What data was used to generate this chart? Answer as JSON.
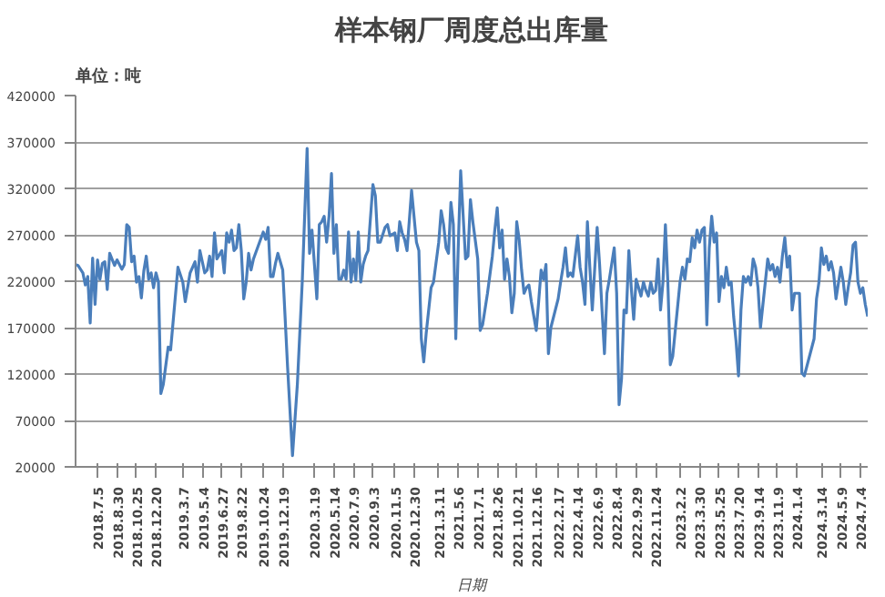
{
  "chart_data": {
    "type": "line",
    "title": "样本钢厂周度总出库量",
    "subtitle": "单位：吨",
    "xlabel": "日期",
    "x": [
      "2018-05-03",
      "2018-05-10",
      "2018-05-24",
      "2018-05-31",
      "2018-06-07",
      "2018-06-14",
      "2018-06-21",
      "2018-06-28",
      "2018-07-05",
      "2018-07-12",
      "2018-07-19",
      "2018-07-26",
      "2018-08-02",
      "2018-08-09",
      "2018-08-23",
      "2018-08-30",
      "2018-09-13",
      "2018-09-20",
      "2018-09-27",
      "2018-10-04",
      "2018-10-11",
      "2018-10-18",
      "2018-10-25",
      "2018-11-01",
      "2018-11-08",
      "2018-11-15",
      "2018-11-22",
      "2018-11-29",
      "2018-12-06",
      "2018-12-13",
      "2018-12-20",
      "2018-12-27",
      "2019-01-03",
      "2019-01-10",
      "2019-01-24",
      "2019-01-31",
      "2019-02-21",
      "2019-03-07",
      "2019-03-14",
      "2019-03-28",
      "2019-04-11",
      "2019-04-18",
      "2019-04-25",
      "2019-05-09",
      "2019-05-16",
      "2019-05-23",
      "2019-05-30",
      "2019-06-06",
      "2019-06-13",
      "2019-06-27",
      "2019-07-04",
      "2019-07-11",
      "2019-07-18",
      "2019-07-25",
      "2019-08-01",
      "2019-08-08",
      "2019-08-15",
      "2019-08-22",
      "2019-08-29",
      "2019-09-05",
      "2019-09-12",
      "2019-09-19",
      "2019-09-26",
      "2019-10-24",
      "2019-10-31",
      "2019-11-07",
      "2019-11-14",
      "2019-11-21",
      "2019-11-28",
      "2019-12-05",
      "2019-12-19",
      "2020-01-02",
      "2020-01-16",
      "2020-01-30",
      "2020-02-13",
      "2020-02-27",
      "2020-03-05",
      "2020-03-12",
      "2020-03-26",
      "2020-04-02",
      "2020-04-09",
      "2020-04-16",
      "2020-04-23",
      "2020-04-30",
      "2020-05-07",
      "2020-05-14",
      "2020-05-21",
      "2020-05-28",
      "2020-06-04",
      "2020-06-11",
      "2020-06-18",
      "2020-06-25",
      "2020-07-02",
      "2020-07-09",
      "2020-07-16",
      "2020-07-23",
      "2020-07-30",
      "2020-08-06",
      "2020-08-13",
      "2020-08-20",
      "2020-09-03",
      "2020-09-10",
      "2020-09-17",
      "2020-09-24",
      "2020-10-08",
      "2020-10-15",
      "2020-10-22",
      "2020-11-05",
      "2020-11-12",
      "2020-11-19",
      "2020-11-26",
      "2020-12-03",
      "2020-12-10",
      "2020-12-23",
      "2021-01-06",
      "2021-01-13",
      "2021-01-20",
      "2021-01-27",
      "2021-02-03",
      "2021-02-17",
      "2021-02-24",
      "2021-03-11",
      "2021-03-18",
      "2021-03-25",
      "2021-04-01",
      "2021-04-08",
      "2021-04-15",
      "2021-04-22",
      "2021-04-29",
      "2021-05-06",
      "2021-05-13",
      "2021-05-27",
      "2021-06-03",
      "2021-06-10",
      "2021-06-17",
      "2021-07-01",
      "2021-07-08",
      "2021-07-15",
      "2021-07-29",
      "2021-08-12",
      "2021-08-19",
      "2021-08-26",
      "2021-09-02",
      "2021-09-09",
      "2021-09-16",
      "2021-09-23",
      "2021-09-30",
      "2021-10-07",
      "2021-10-14",
      "2021-10-21",
      "2021-10-28",
      "2021-11-04",
      "2021-11-11",
      "2021-11-18",
      "2021-11-25",
      "2021-12-02",
      "2021-12-16",
      "2021-12-23",
      "2021-12-30",
      "2022-01-06",
      "2022-01-13",
      "2022-01-20",
      "2022-01-27",
      "2022-02-17",
      "2022-02-24",
      "2022-03-03",
      "2022-03-10",
      "2022-03-17",
      "2022-03-24",
      "2022-03-31",
      "2022-04-14",
      "2022-04-21",
      "2022-04-28",
      "2022-05-05",
      "2022-05-12",
      "2022-05-19",
      "2022-05-26",
      "2022-06-09",
      "2022-06-16",
      "2022-06-23",
      "2022-06-30",
      "2022-07-07",
      "2022-07-14",
      "2022-07-28",
      "2022-08-04",
      "2022-08-11",
      "2022-08-18",
      "2022-08-25",
      "2022-09-01",
      "2022-09-08",
      "2022-09-15",
      "2022-09-22",
      "2022-09-29",
      "2022-10-13",
      "2022-10-20",
      "2022-10-27",
      "2022-11-03",
      "2022-11-10",
      "2022-11-17",
      "2022-11-24",
      "2022-12-01",
      "2022-12-08",
      "2022-12-15",
      "2022-12-22",
      "2022-12-29",
      "2023-01-05",
      "2023-01-12",
      "2023-02-02",
      "2023-02-09",
      "2023-02-16",
      "2023-02-23",
      "2023-03-02",
      "2023-03-09",
      "2023-03-16",
      "2023-03-23",
      "2023-03-30",
      "2023-04-06",
      "2023-04-13",
      "2023-04-20",
      "2023-04-27",
      "2023-05-04",
      "2023-05-11",
      "2023-05-18",
      "2023-05-25",
      "2023-06-01",
      "2023-06-08",
      "2023-06-15",
      "2023-06-22",
      "2023-06-29",
      "2023-07-06",
      "2023-07-13",
      "2023-07-20",
      "2023-07-27",
      "2023-08-03",
      "2023-08-10",
      "2023-08-17",
      "2023-08-24",
      "2023-08-31",
      "2023-09-07",
      "2023-09-14",
      "2023-09-21",
      "2023-10-12",
      "2023-10-19",
      "2023-10-26",
      "2023-11-02",
      "2023-11-09",
      "2023-11-16",
      "2023-11-23",
      "2023-11-30",
      "2023-12-07",
      "2023-12-14",
      "2023-12-21",
      "2023-12-28",
      "2024-01-04",
      "2024-01-11",
      "2024-01-18",
      "2024-01-25",
      "2024-02-22",
      "2024-02-29",
      "2024-03-07",
      "2024-03-14",
      "2024-03-21",
      "2024-03-28",
      "2024-04-04",
      "2024-04-11",
      "2024-04-18",
      "2024-04-25",
      "2024-05-09",
      "2024-05-16",
      "2024-05-23",
      "2024-05-30",
      "2024-06-06",
      "2024-06-13",
      "2024-06-20",
      "2024-06-27",
      "2024-07-04",
      "2024-07-11",
      "2024-07-18",
      "2024-07-25"
    ],
    "series": [
      {
        "color": "#4a7ebb",
        "values": [
          238000,
          237000,
          229000,
          216000,
          225000,
          175000,
          245000,
          195000,
          243000,
          222000,
          239000,
          241000,
          211000,
          250000,
          237000,
          243000,
          233000,
          238000,
          281000,
          278000,
          241000,
          247000,
          219000,
          225000,
          202000,
          231000,
          247000,
          222000,
          229000,
          213000,
          229000,
          219000,
          99000,
          109000,
          149000,
          146000,
          235000,
          219000,
          198000,
          229000,
          241000,
          219000,
          253000,
          229000,
          232000,
          247000,
          225000,
          272000,
          244000,
          253000,
          229000,
          272000,
          262000,
          275000,
          253000,
          256000,
          281000,
          253000,
          201000,
          219000,
          250000,
          232000,
          244000,
          273000,
          265000,
          278000,
          225000,
          225000,
          239000,
          250000,
          232000,
          127000,
          32000,
          109000,
          219000,
          363000,
          250000,
          275000,
          201000,
          281000,
          284000,
          290000,
          262000,
          290000,
          336000,
          250000,
          281000,
          222000,
          222000,
          232000,
          222000,
          273000,
          219000,
          244000,
          221000,
          273000,
          219000,
          238000,
          247000,
          253000,
          324000,
          312000,
          262000,
          262000,
          278000,
          281000,
          269000,
          272000,
          253000,
          284000,
          272000,
          265000,
          253000,
          318000,
          262000,
          253000,
          158000,
          133000,
          164000,
          213000,
          219000,
          262000,
          296000,
          281000,
          256000,
          250000,
          305000,
          281000,
          158000,
          256000,
          339000,
          244000,
          247000,
          308000,
          284000,
          244000,
          167000,
          173000,
          207000,
          247000,
          275000,
          299000,
          256000,
          275000,
          222000,
          244000,
          225000,
          186000,
          207000,
          284000,
          265000,
          232000,
          207000,
          213000,
          216000,
          198000,
          167000,
          198000,
          232000,
          222000,
          238000,
          142000,
          170000,
          201000,
          219000,
          235000,
          256000,
          225000,
          229000,
          225000,
          269000,
          235000,
          219000,
          195000,
          284000,
          235000,
          189000,
          278000,
          238000,
          189000,
          142000,
          207000,
          222000,
          256000,
          207000,
          87000,
          115000,
          189000,
          186000,
          253000,
          213000,
          179000,
          222000,
          204000,
          219000,
          210000,
          204000,
          219000,
          207000,
          210000,
          244000,
          189000,
          219000,
          281000,
          219000,
          130000,
          139000,
          219000,
          235000,
          222000,
          244000,
          241000,
          267000,
          256000,
          275000,
          262000,
          275000,
          278000,
          173000,
          256000,
          290000,
          262000,
          272000,
          198000,
          225000,
          213000,
          235000,
          216000,
          219000,
          182000,
          155000,
          118000,
          189000,
          225000,
          219000,
          225000,
          216000,
          244000,
          235000,
          213000,
          170000,
          244000,
          232000,
          238000,
          225000,
          235000,
          219000,
          247000,
          267000,
          235000,
          247000,
          189000,
          207000,
          207000,
          207000,
          121000,
          118000,
          158000,
          201000,
          219000,
          256000,
          238000,
          247000,
          232000,
          241000,
          229000,
          201000,
          235000,
          219000,
          195000,
          213000,
          229000,
          259000,
          262000,
          219000,
          207000,
          213000,
          195000,
          182000
        ]
      }
    ],
    "xlim": [
      "2018-05-03",
      "2024-07-25"
    ],
    "xticks": [
      {
        "value": "2018-07-05",
        "label": "2018.7.5"
      },
      {
        "value": "2018-08-30",
        "label": "2018.8.30"
      },
      {
        "value": "2018-10-25",
        "label": "2018.10.25"
      },
      {
        "value": "2018-12-20",
        "label": "2018.12.20"
      },
      {
        "value": "2019-03-07",
        "label": "2019.3.7"
      },
      {
        "value": "2019-05-04",
        "label": "2019.5.4"
      },
      {
        "value": "2019-06-27",
        "label": "2019.6.27"
      },
      {
        "value": "2019-08-22",
        "label": "2019.8.22"
      },
      {
        "value": "2019-10-24",
        "label": "2019.10.24"
      },
      {
        "value": "2019-12-19",
        "label": "2019.12.19"
      },
      {
        "value": "2020-03-19",
        "label": "2020.3.19"
      },
      {
        "value": "2020-05-14",
        "label": "2020.5.14"
      },
      {
        "value": "2020-07-09",
        "label": "2020.7.9"
      },
      {
        "value": "2020-09-03",
        "label": "2020.9.3"
      },
      {
        "value": "2020-11-05",
        "label": "2020.11.5"
      },
      {
        "value": "2020-12-30",
        "label": "2020.12.30"
      },
      {
        "value": "2021-03-11",
        "label": "2021.3.11"
      },
      {
        "value": "2021-05-06",
        "label": "2021.5.6"
      },
      {
        "value": "2021-07-01",
        "label": "2021.7.1"
      },
      {
        "value": "2021-08-26",
        "label": "2021.8.26"
      },
      {
        "value": "2021-10-21",
        "label": "2021.10.21"
      },
      {
        "value": "2021-12-16",
        "label": "2021.12.16"
      },
      {
        "value": "2022-02-17",
        "label": "2022.2.17"
      },
      {
        "value": "2022-04-14",
        "label": "2022.4.14"
      },
      {
        "value": "2022-06-09",
        "label": "2022.6.9"
      },
      {
        "value": "2022-08-04",
        "label": "2022.8.4"
      },
      {
        "value": "2022-09-29",
        "label": "2022.9.29"
      },
      {
        "value": "2022-11-24",
        "label": "2022.11.24"
      },
      {
        "value": "2023-02-02",
        "label": "2023.2.2"
      },
      {
        "value": "2023-03-30",
        "label": "2023.3.30"
      },
      {
        "value": "2023-05-25",
        "label": "2023.5.25"
      },
      {
        "value": "2023-07-20",
        "label": "2023.7.20"
      },
      {
        "value": "2023-09-14",
        "label": "2023.9.14"
      },
      {
        "value": "2023-11-09",
        "label": "2023.11.9"
      },
      {
        "value": "2024-01-04",
        "label": "2024.1.4"
      },
      {
        "value": "2024-03-14",
        "label": "2024.3.14"
      },
      {
        "value": "2024-05-09",
        "label": "2024.5.9"
      },
      {
        "value": "2024-07-04",
        "label": "2024.7.4"
      }
    ],
    "ylim": [
      20000,
      420000
    ],
    "yticks": [
      20000,
      70000,
      120000,
      170000,
      220000,
      270000,
      320000,
      370000,
      420000
    ],
    "grid": "y",
    "marker": "none",
    "line_style": "solid"
  }
}
